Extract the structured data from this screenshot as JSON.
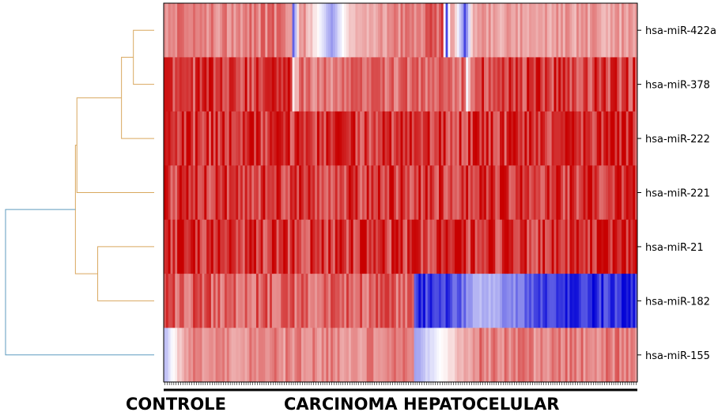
{
  "chart_data": {
    "type": "heatmap",
    "rows": [
      "hsa-miR-422a",
      "hsa-miR-378",
      "hsa-miR-222",
      "hsa-miR-221",
      "hsa-miR-21",
      "hsa-miR-182",
      "hsa-miR-155"
    ],
    "column_groups": [
      {
        "label": "CONTROLE",
        "count": 10
      },
      {
        "label": "CARCINOMA HEPATOCELULAR",
        "count": 200
      }
    ],
    "value_range": [
      -1,
      1
    ],
    "colormap": {
      "low": "#0000d6",
      "mid": "#ffffff",
      "high": "#c80000"
    },
    "profiles": [
      {
        "row": "hsa-miR-422a",
        "segments": [
          [
            0,
            0.6
          ],
          [
            56,
            0.62
          ],
          [
            57,
            -0.9
          ],
          [
            60,
            0.65
          ],
          [
            74,
            -0.45
          ],
          [
            83,
            0.35
          ],
          [
            123,
            0.75
          ],
          [
            125,
            -0.7
          ],
          [
            127,
            0.65
          ],
          [
            133,
            -0.75
          ],
          [
            137,
            0.45
          ],
          [
            210,
            0.45
          ]
        ]
      },
      {
        "row": "hsa-miR-378",
        "segments": [
          [
            0,
            0.9
          ],
          [
            56,
            0.92
          ],
          [
            57,
            0.1
          ],
          [
            60,
            0.62
          ],
          [
            133,
            0.7
          ],
          [
            134,
            -0.05
          ],
          [
            137,
            0.9
          ],
          [
            210,
            0.9
          ]
        ]
      },
      {
        "row": "hsa-miR-222",
        "segments": [
          [
            0,
            0.95
          ],
          [
            210,
            0.95
          ]
        ]
      },
      {
        "row": "hsa-miR-221",
        "segments": [
          [
            0,
            0.93
          ],
          [
            210,
            0.93
          ]
        ]
      },
      {
        "row": "hsa-miR-21",
        "segments": [
          [
            0,
            0.95
          ],
          [
            210,
            0.95
          ]
        ]
      },
      {
        "row": "hsa-miR-182",
        "segments": [
          [
            0,
            0.75
          ],
          [
            110,
            0.7
          ],
          [
            111,
            -0.95
          ],
          [
            129,
            -0.8
          ],
          [
            140,
            -0.3
          ],
          [
            155,
            -0.55
          ],
          [
            170,
            -0.9
          ],
          [
            210,
            -0.95
          ]
        ]
      },
      {
        "row": "hsa-miR-155",
        "segments": [
          [
            0,
            -0.3
          ],
          [
            10,
            0.55
          ],
          [
            110,
            0.55
          ],
          [
            111,
            -0.4
          ],
          [
            128,
            0.2
          ],
          [
            138,
            0.6
          ],
          [
            210,
            0.6
          ]
        ]
      }
    ],
    "dendrogram": {
      "leaves": [
        "hsa-miR-422a",
        "hsa-miR-378",
        "hsa-miR-222",
        "hsa-miR-221",
        "hsa-miR-21",
        "hsa-miR-182",
        "hsa-miR-155"
      ],
      "merges": [
        {
          "a": "hsa-miR-422a",
          "b": "hsa-miR-378",
          "height": 0.14
        },
        {
          "a": "hsa-miR-21",
          "b": "hsa-miR-182",
          "height": 0.38
        },
        {
          "a": "m0",
          "b": "hsa-miR-222",
          "height": 0.22
        },
        {
          "a": "m2",
          "b": "hsa-miR-221",
          "height": 0.52
        },
        {
          "a": "m3",
          "b": "m1",
          "height": 0.53
        },
        {
          "a": "m4",
          "b": "hsa-miR-155",
          "height": 1.0
        }
      ],
      "colors": {
        "clusters": "#d9a85f",
        "root": "#5f9bbf"
      }
    }
  }
}
